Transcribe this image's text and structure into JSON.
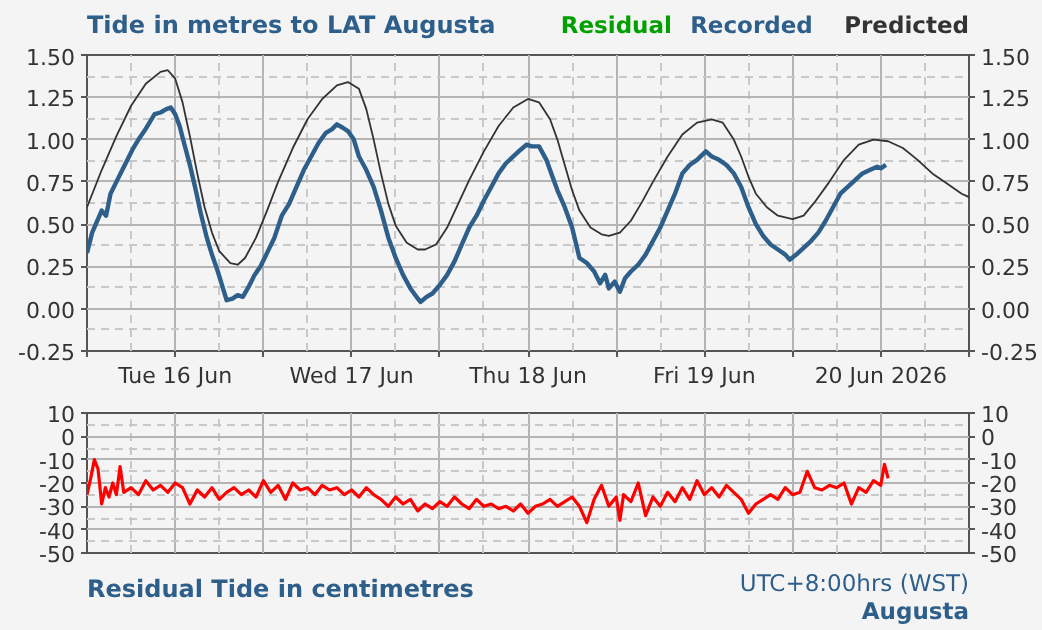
{
  "chart_data": [
    {
      "type": "line",
      "title": "Tide in metres to LAT Augusta",
      "legend": "top right",
      "grid": true,
      "line_style": "solid",
      "marker": "none",
      "xlim": [
        "2026-06-16T00:00",
        "2026-06-21T00:00"
      ],
      "xticks": [
        {
          "value": "2026-06-16T00:00",
          "label": null
        },
        {
          "value": "2026-06-16T12:00",
          "label": "Tue 16 Jun"
        },
        {
          "value": "2026-06-17T00:00",
          "label": null
        },
        {
          "value": "2026-06-17T12:00",
          "label": "Wed 17 Jun"
        },
        {
          "value": "2026-06-18T00:00",
          "label": null
        },
        {
          "value": "2026-06-18T12:00",
          "label": "Thu 18 Jun"
        },
        {
          "value": "2026-06-19T00:00",
          "label": null
        },
        {
          "value": "2026-06-19T12:00",
          "label": "Fri 19 Jun"
        },
        {
          "value": "2026-06-20T00:00",
          "label": null
        },
        {
          "value": "2026-06-20T12:00",
          "label": "20 Jun 2026"
        },
        {
          "value": "2026-06-21T00:00",
          "label": null
        }
      ],
      "ylim": [
        -0.25,
        1.5
      ],
      "yticks": [
        {
          "value": -0.25,
          "label": "-0.25"
        },
        {
          "value": 0,
          "label": "0.00"
        },
        {
          "value": 0.25,
          "label": "0.25"
        },
        {
          "value": 0.5,
          "label": "0.50"
        },
        {
          "value": 0.75,
          "label": "0.75"
        },
        {
          "value": 1.0,
          "label": "1.00"
        },
        {
          "value": 1.25,
          "label": "1.25"
        },
        {
          "value": 1.5,
          "label": "1.50"
        }
      ],
      "y2lim": [
        -0.25,
        1.5
      ],
      "y2ticks": [
        {
          "value": -0.25,
          "label": "-0.25"
        },
        {
          "value": 0,
          "label": "0.00"
        },
        {
          "value": 0.25,
          "label": "0.25"
        },
        {
          "value": 0.5,
          "label": "0.50"
        },
        {
          "value": 0.75,
          "label": "0.75"
        },
        {
          "value": 1.0,
          "label": "1.00"
        },
        {
          "value": 1.25,
          "label": "1.25"
        },
        {
          "value": 1.5,
          "label": "1.50"
        }
      ],
      "series": [
        {
          "name": "Recorded",
          "color": "#2e5f8a",
          "x": [
            "2026-06-16T00:00",
            "2026-06-16T00:42",
            "2026-06-16T01:12",
            "2026-06-16T02:00",
            "2026-06-16T02:36",
            "2026-06-16T03:12",
            "2026-06-16T04:00",
            "2026-06-16T04:48",
            "2026-06-16T05:30",
            "2026-06-16T06:18",
            "2026-06-16T07:00",
            "2026-06-16T07:48",
            "2026-06-16T08:30",
            "2026-06-16T09:12",
            "2026-06-16T10:00",
            "2026-06-16T10:48",
            "2026-06-16T11:24",
            "2026-06-16T12:00",
            "2026-06-16T12:36",
            "2026-06-16T13:12",
            "2026-06-16T14:00",
            "2026-06-16T14:48",
            "2026-06-16T15:30",
            "2026-06-16T16:18",
            "2026-06-16T17:00",
            "2026-06-16T17:48",
            "2026-06-16T18:30",
            "2026-06-16T19:00",
            "2026-06-16T19:48",
            "2026-06-16T20:30",
            "2026-06-16T21:12",
            "2026-06-16T22:00",
            "2026-06-16T22:48",
            "2026-06-16T23:36",
            "2026-06-17T00:30",
            "2026-06-17T01:30",
            "2026-06-17T02:30",
            "2026-06-17T03:30",
            "2026-06-17T04:30",
            "2026-06-17T05:30",
            "2026-06-17T06:30",
            "2026-06-17T07:30",
            "2026-06-17T08:30",
            "2026-06-17T09:18",
            "2026-06-17T10:00",
            "2026-06-17T10:48",
            "2026-06-17T11:30",
            "2026-06-17T12:18",
            "2026-06-17T13:00",
            "2026-06-17T14:00",
            "2026-06-17T15:00",
            "2026-06-17T16:00",
            "2026-06-17T17:00",
            "2026-06-17T18:00",
            "2026-06-17T19:00",
            "2026-06-17T20:00",
            "2026-06-17T21:00",
            "2026-06-17T21:24",
            "2026-06-17T22:12",
            "2026-06-17T23:00",
            "2026-06-18T00:00",
            "2026-06-18T01:00",
            "2026-06-18T02:00",
            "2026-06-18T03:00",
            "2026-06-18T04:00",
            "2026-06-18T05:00",
            "2026-06-18T06:00",
            "2026-06-18T07:00",
            "2026-06-18T08:00",
            "2026-06-18T09:00",
            "2026-06-18T10:00",
            "2026-06-18T11:00",
            "2026-06-18T11:48",
            "2026-06-18T12:30",
            "2026-06-18T13:30",
            "2026-06-18T14:30",
            "2026-06-18T15:00",
            "2026-06-18T16:00",
            "2026-06-18T17:00",
            "2026-06-18T18:00",
            "2026-06-18T19:00",
            "2026-06-18T20:00",
            "2026-06-18T21:00",
            "2026-06-18T21:48",
            "2026-06-18T22:30",
            "2026-06-18T23:00",
            "2026-06-18T23:48",
            "2026-06-19T00:30",
            "2026-06-19T01:12",
            "2026-06-19T02:00",
            "2026-06-19T03:00",
            "2026-06-19T04:00",
            "2026-06-19T05:00",
            "2026-06-19T06:00",
            "2026-06-19T07:00",
            "2026-06-19T08:00",
            "2026-06-19T09:00",
            "2026-06-19T10:00",
            "2026-06-19T11:00",
            "2026-06-19T12:12",
            "2026-06-19T13:00",
            "2026-06-19T14:00",
            "2026-06-19T15:00",
            "2026-06-19T16:00",
            "2026-06-19T17:00",
            "2026-06-19T18:00",
            "2026-06-19T19:00",
            "2026-06-19T20:00",
            "2026-06-19T21:00",
            "2026-06-19T22:00",
            "2026-06-19T23:00",
            "2026-06-19T23:36",
            "2026-06-20T00:30",
            "2026-06-20T01:30",
            "2026-06-20T02:30",
            "2026-06-20T03:30",
            "2026-06-20T04:30",
            "2026-06-20T05:30",
            "2026-06-20T06:30",
            "2026-06-20T07:30",
            "2026-06-20T08:30",
            "2026-06-20T09:30",
            "2026-06-20T10:30",
            "2026-06-20T11:30",
            "2026-06-20T12:00",
            "2026-06-20T12:42"
          ],
          "values": [
            0.33,
            0.45,
            0.5,
            0.58,
            0.55,
            0.68,
            0.75,
            0.82,
            0.88,
            0.95,
            1.0,
            1.05,
            1.1,
            1.15,
            1.16,
            1.18,
            1.19,
            1.15,
            1.08,
            0.98,
            0.85,
            0.7,
            0.56,
            0.42,
            0.32,
            0.22,
            0.12,
            0.05,
            0.06,
            0.08,
            0.07,
            0.13,
            0.2,
            0.25,
            0.33,
            0.42,
            0.55,
            0.62,
            0.72,
            0.82,
            0.9,
            0.98,
            1.04,
            1.06,
            1.09,
            1.07,
            1.05,
            1.0,
            0.9,
            0.82,
            0.72,
            0.58,
            0.42,
            0.3,
            0.2,
            0.12,
            0.06,
            0.04,
            0.07,
            0.09,
            0.14,
            0.2,
            0.28,
            0.38,
            0.48,
            0.55,
            0.64,
            0.72,
            0.8,
            0.86,
            0.9,
            0.94,
            0.97,
            0.96,
            0.96,
            0.88,
            0.82,
            0.7,
            0.6,
            0.48,
            0.3,
            0.27,
            0.22,
            0.15,
            0.2,
            0.12,
            0.16,
            0.1,
            0.18,
            0.22,
            0.26,
            0.32,
            0.4,
            0.48,
            0.58,
            0.68,
            0.8,
            0.85,
            0.88,
            0.93,
            0.9,
            0.88,
            0.85,
            0.8,
            0.72,
            0.6,
            0.5,
            0.43,
            0.38,
            0.35,
            0.32,
            0.29,
            0.32,
            0.36,
            0.4,
            0.45,
            0.52,
            0.6,
            0.68,
            0.72,
            0.76,
            0.8,
            0.82,
            0.84,
            0.83,
            0.85
          ]
        },
        {
          "name": "Predicted",
          "color": "#333333",
          "x": [
            "2026-06-16T00:00",
            "2026-06-16T02:00",
            "2026-06-16T04:00",
            "2026-06-16T06:00",
            "2026-06-16T08:00",
            "2026-06-16T10:00",
            "2026-06-16T11:00",
            "2026-06-16T12:00",
            "2026-06-16T13:00",
            "2026-06-16T14:00",
            "2026-06-16T15:00",
            "2026-06-16T16:00",
            "2026-06-16T17:00",
            "2026-06-16T18:00",
            "2026-06-16T19:30",
            "2026-06-16T20:30",
            "2026-06-16T21:30",
            "2026-06-16T23:00",
            "2026-06-17T00:30",
            "2026-06-17T02:00",
            "2026-06-17T04:00",
            "2026-06-17T06:00",
            "2026-06-17T08:00",
            "2026-06-17T10:00",
            "2026-06-17T11:30",
            "2026-06-17T13:00",
            "2026-06-17T14:00",
            "2026-06-17T15:00",
            "2026-06-17T16:00",
            "2026-06-17T17:00",
            "2026-06-17T18:00",
            "2026-06-17T19:30",
            "2026-06-17T21:00",
            "2026-06-17T22:00",
            "2026-06-17T23:30",
            "2026-06-18T01:00",
            "2026-06-18T02:30",
            "2026-06-18T04:00",
            "2026-06-18T06:00",
            "2026-06-18T08:00",
            "2026-06-18T10:00",
            "2026-06-18T12:00",
            "2026-06-18T13:30",
            "2026-06-18T15:00",
            "2026-06-18T16:00",
            "2026-06-18T17:00",
            "2026-06-18T18:00",
            "2026-06-18T19:00",
            "2026-06-18T20:30",
            "2026-06-18T22:00",
            "2026-06-18T23:00",
            "2026-06-19T00:30",
            "2026-06-19T02:00",
            "2026-06-19T03:30",
            "2026-06-19T05:00",
            "2026-06-19T07:00",
            "2026-06-19T09:00",
            "2026-06-19T11:00",
            "2026-06-19T13:00",
            "2026-06-19T14:30",
            "2026-06-19T16:00",
            "2026-06-19T17:00",
            "2026-06-19T18:00",
            "2026-06-19T19:00",
            "2026-06-19T20:30",
            "2026-06-19T22:00",
            "2026-06-20T00:00",
            "2026-06-20T01:30",
            "2026-06-20T03:00",
            "2026-06-20T05:00",
            "2026-06-20T07:00",
            "2026-06-20T09:00",
            "2026-06-20T11:00",
            "2026-06-20T13:00",
            "2026-06-20T15:00",
            "2026-06-20T17:00",
            "2026-06-20T19:00",
            "2026-06-20T21:00",
            "2026-06-20T23:00",
            "2026-06-21T00:00"
          ],
          "values": [
            0.6,
            0.82,
            1.02,
            1.2,
            1.33,
            1.4,
            1.41,
            1.36,
            1.22,
            1.02,
            0.8,
            0.6,
            0.45,
            0.34,
            0.27,
            0.26,
            0.3,
            0.42,
            0.58,
            0.75,
            0.95,
            1.12,
            1.24,
            1.32,
            1.34,
            1.3,
            1.18,
            1.0,
            0.8,
            0.62,
            0.49,
            0.39,
            0.35,
            0.35,
            0.38,
            0.48,
            0.62,
            0.76,
            0.93,
            1.08,
            1.19,
            1.24,
            1.22,
            1.12,
            1.0,
            0.85,
            0.7,
            0.58,
            0.48,
            0.44,
            0.43,
            0.45,
            0.52,
            0.63,
            0.75,
            0.9,
            1.03,
            1.1,
            1.12,
            1.1,
            1.0,
            0.9,
            0.78,
            0.68,
            0.6,
            0.55,
            0.53,
            0.55,
            0.63,
            0.75,
            0.88,
            0.97,
            1.0,
            0.99,
            0.95,
            0.88,
            0.8,
            0.74,
            0.68,
            0.66
          ]
        }
      ]
    },
    {
      "type": "line",
      "title": "Residual Tide in centimetres",
      "annotations": [
        "UTC+8:00hrs (WST)",
        "Augusta"
      ],
      "grid": true,
      "tick_labels": "y",
      "line_style": "solid",
      "marker": "none",
      "xlim": [
        "2026-06-16T00:00",
        "2026-06-21T00:00"
      ],
      "xticks": [
        {
          "value": "2026-06-16T00:00",
          "label": null
        },
        {
          "value": "2026-06-16T12:00",
          "label": null
        },
        {
          "value": "2026-06-17T00:00",
          "label": null
        },
        {
          "value": "2026-06-17T12:00",
          "label": null
        },
        {
          "value": "2026-06-18T00:00",
          "label": null
        },
        {
          "value": "2026-06-18T12:00",
          "label": null
        },
        {
          "value": "2026-06-19T00:00",
          "label": null
        },
        {
          "value": "2026-06-19T12:00",
          "label": null
        },
        {
          "value": "2026-06-20T00:00",
          "label": null
        },
        {
          "value": "2026-06-20T12:00",
          "label": null
        },
        {
          "value": "2026-06-21T00:00",
          "label": null
        }
      ],
      "ylim": [
        -50,
        10
      ],
      "yticks": [
        -50,
        -40,
        -30,
        -20,
        -10,
        0,
        10
      ],
      "y2lim": [
        -50,
        10
      ],
      "y2ticks": [
        -50,
        -40,
        -30,
        -20,
        -10,
        0,
        10
      ],
      "series": [
        {
          "name": "Residual",
          "color": "#ff0000",
          "x": [
            "2026-06-16T00:00",
            "2026-06-16T00:30",
            "2026-06-16T01:00",
            "2026-06-16T01:30",
            "2026-06-16T02:00",
            "2026-06-16T02:30",
            "2026-06-16T03:00",
            "2026-06-16T03:30",
            "2026-06-16T04:00",
            "2026-06-16T04:30",
            "2026-06-16T05:00",
            "2026-06-16T06:00",
            "2026-06-16T07:00",
            "2026-06-16T08:00",
            "2026-06-16T09:00",
            "2026-06-16T10:00",
            "2026-06-16T11:00",
            "2026-06-16T12:00",
            "2026-06-16T13:00",
            "2026-06-16T14:00",
            "2026-06-16T15:00",
            "2026-06-16T16:00",
            "2026-06-16T17:00",
            "2026-06-16T18:00",
            "2026-06-16T19:00",
            "2026-06-16T20:00",
            "2026-06-16T21:00",
            "2026-06-16T22:00",
            "2026-06-16T23:00",
            "2026-06-17T00:00",
            "2026-06-17T01:00",
            "2026-06-17T02:00",
            "2026-06-17T03:00",
            "2026-06-17T04:00",
            "2026-06-17T05:00",
            "2026-06-17T06:00",
            "2026-06-17T07:00",
            "2026-06-17T08:00",
            "2026-06-17T09:00",
            "2026-06-17T10:00",
            "2026-06-17T11:00",
            "2026-06-17T12:00",
            "2026-06-17T13:00",
            "2026-06-17T14:00",
            "2026-06-17T15:00",
            "2026-06-17T16:00",
            "2026-06-17T17:00",
            "2026-06-17T18:00",
            "2026-06-17T19:00",
            "2026-06-17T20:00",
            "2026-06-17T21:00",
            "2026-06-17T22:00",
            "2026-06-17T23:00",
            "2026-06-18T00:00",
            "2026-06-18T01:00",
            "2026-06-18T02:00",
            "2026-06-18T03:00",
            "2026-06-18T04:00",
            "2026-06-18T05:00",
            "2026-06-18T06:00",
            "2026-06-18T07:00",
            "2026-06-18T08:00",
            "2026-06-18T09:00",
            "2026-06-18T10:00",
            "2026-06-18T11:00",
            "2026-06-18T12:00",
            "2026-06-18T13:00",
            "2026-06-18T14:00",
            "2026-06-18T15:00",
            "2026-06-18T16:00",
            "2026-06-18T17:00",
            "2026-06-18T18:00",
            "2026-06-18T19:00",
            "2026-06-18T20:00",
            "2026-06-18T21:00",
            "2026-06-18T22:00",
            "2026-06-18T23:00",
            "2026-06-19T00:00",
            "2026-06-19T00:30",
            "2026-06-19T01:00",
            "2026-06-19T02:00",
            "2026-06-19T03:00",
            "2026-06-19T04:00",
            "2026-06-19T05:00",
            "2026-06-19T06:00",
            "2026-06-19T07:00",
            "2026-06-19T08:00",
            "2026-06-19T09:00",
            "2026-06-19T10:00",
            "2026-06-19T11:00",
            "2026-06-19T12:00",
            "2026-06-19T13:00",
            "2026-06-19T14:00",
            "2026-06-19T15:00",
            "2026-06-19T16:00",
            "2026-06-19T17:00",
            "2026-06-19T18:00",
            "2026-06-19T19:00",
            "2026-06-19T20:00",
            "2026-06-19T21:00",
            "2026-06-19T22:00",
            "2026-06-19T23:00",
            "2026-06-20T00:00",
            "2026-06-20T01:00",
            "2026-06-20T02:00",
            "2026-06-20T03:00",
            "2026-06-20T04:00",
            "2026-06-20T05:00",
            "2026-06-20T06:00",
            "2026-06-20T07:00",
            "2026-06-20T08:00",
            "2026-06-20T09:00",
            "2026-06-20T10:00",
            "2026-06-20T11:00",
            "2026-06-20T12:00",
            "2026-06-20T12:30",
            "2026-06-20T13:00"
          ],
          "values": [
            -25,
            -18,
            -10,
            -14,
            -29,
            -22,
            -26,
            -20,
            -25,
            -13,
            -24,
            -22,
            -25,
            -19,
            -23,
            -21,
            -24,
            -20,
            -22,
            -29,
            -23,
            -26,
            -22,
            -27,
            -24,
            -22,
            -25,
            -23,
            -26,
            -19,
            -24,
            -21,
            -27,
            -20,
            -23,
            -22,
            -25,
            -21,
            -23,
            -22,
            -25,
            -23,
            -26,
            -22,
            -25,
            -27,
            -30,
            -26,
            -29,
            -27,
            -32,
            -29,
            -31,
            -28,
            -30,
            -26,
            -29,
            -31,
            -27,
            -30,
            -29,
            -31,
            -30,
            -32,
            -29,
            -33,
            -30,
            -29,
            -27,
            -30,
            -28,
            -26,
            -30,
            -37,
            -27,
            -21,
            -30,
            -26,
            -36,
            -25,
            -28,
            -20,
            -34,
            -26,
            -30,
            -24,
            -28,
            -22,
            -27,
            -19,
            -25,
            -22,
            -26,
            -21,
            -24,
            -27,
            -33,
            -29,
            -27,
            -25,
            -27,
            -22,
            -25,
            -24,
            -15,
            -22,
            -23,
            -21,
            -22,
            -20,
            -29,
            -22,
            -24,
            -19,
            -21,
            -12,
            -18
          ]
        }
      ]
    }
  ]
}
